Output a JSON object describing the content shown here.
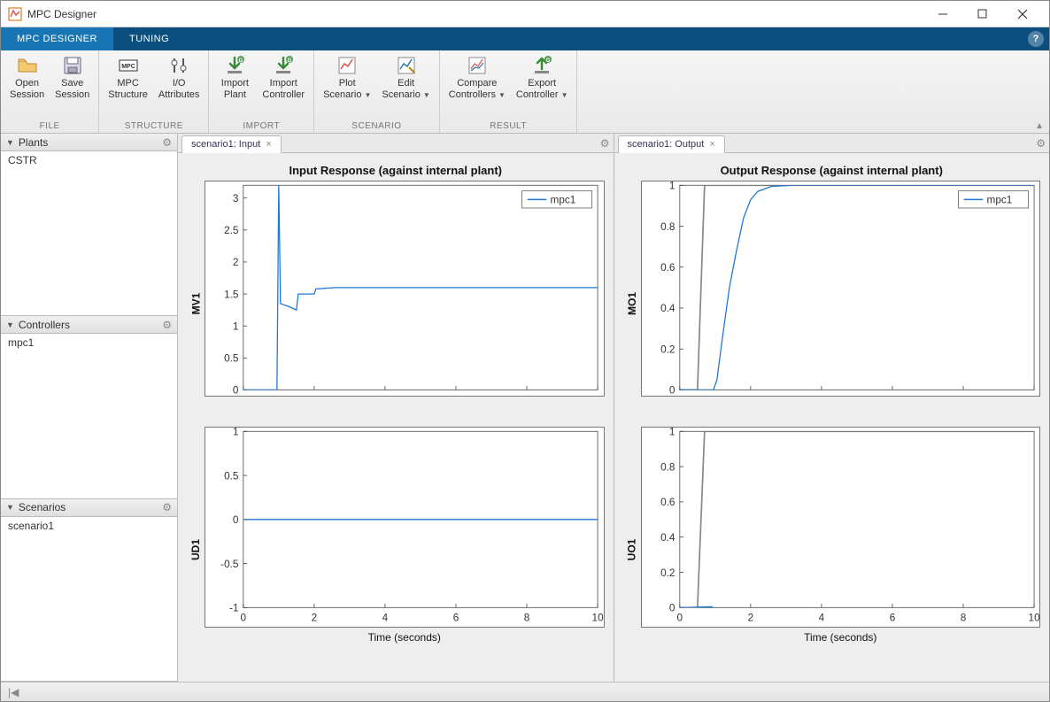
{
  "window": {
    "title": "MPC Designer"
  },
  "ribbon": {
    "tabs": [
      {
        "label": "MPC DESIGNER",
        "active": true
      },
      {
        "label": "TUNING",
        "active": false
      }
    ],
    "groups": [
      {
        "label": "FILE",
        "buttons": [
          {
            "label": "Open\nSession",
            "icon": "open"
          },
          {
            "label": "Save\nSession",
            "icon": "save"
          }
        ]
      },
      {
        "label": "STRUCTURE",
        "buttons": [
          {
            "label": "MPC\nStructure",
            "icon": "mpc"
          },
          {
            "label": "I/O\nAttributes",
            "icon": "io"
          }
        ]
      },
      {
        "label": "IMPORT",
        "buttons": [
          {
            "label": "Import\nPlant",
            "icon": "import-down"
          },
          {
            "label": "Import\nController",
            "icon": "import-down"
          }
        ]
      },
      {
        "label": "SCENARIO",
        "buttons": [
          {
            "label": "Plot\nScenario",
            "icon": "plot",
            "dropdown": true
          },
          {
            "label": "Edit\nScenario",
            "icon": "edit",
            "dropdown": true
          }
        ]
      },
      {
        "label": "RESULT",
        "buttons": [
          {
            "label": "Compare\nControllers",
            "icon": "compare",
            "dropdown": true
          },
          {
            "label": "Export\nController",
            "icon": "export",
            "dropdown": true
          }
        ]
      }
    ]
  },
  "sidebar": {
    "panels": [
      {
        "title": "Plants",
        "items": [
          "CSTR"
        ]
      },
      {
        "title": "Controllers",
        "items": [
          "mpc1"
        ]
      },
      {
        "title": "Scenarios",
        "items": [
          "scenario1"
        ]
      }
    ]
  },
  "panes": [
    {
      "tab": "scenario1: Input",
      "title": "Input Response (against internal plant)",
      "xlabel": "Time (seconds)",
      "legend": "mpc1",
      "series_color": "#1f77d4",
      "charts": [
        {
          "ylabel": "MV1",
          "xlim": [
            0,
            10
          ],
          "xticks": [
            0,
            2,
            4,
            6,
            8,
            10
          ],
          "ylim": [
            0,
            3.2
          ],
          "yticks": [
            0,
            0.5,
            1,
            1.5,
            2,
            2.5,
            3
          ],
          "show_legend": true,
          "show_xlabel": false,
          "lines": [],
          "series": [
            [
              0,
              0
            ],
            [
              0.95,
              0
            ],
            [
              1.0,
              3.2
            ],
            [
              1.05,
              1.35
            ],
            [
              1.3,
              1.3
            ],
            [
              1.5,
              1.25
            ],
            [
              1.55,
              1.5
            ],
            [
              2.0,
              1.5
            ],
            [
              2.05,
              1.58
            ],
            [
              2.6,
              1.6
            ],
            [
              10,
              1.6
            ]
          ]
        },
        {
          "ylabel": "UD1",
          "xlim": [
            0,
            10
          ],
          "xticks": [
            0,
            2,
            4,
            6,
            8,
            10
          ],
          "ylim": [
            -1,
            1
          ],
          "yticks": [
            -1,
            -0.5,
            0,
            0.5,
            1
          ],
          "show_legend": false,
          "show_xlabel": true,
          "lines": [],
          "series": [
            [
              0,
              0
            ],
            [
              10,
              0
            ]
          ]
        }
      ]
    },
    {
      "tab": "scenario1: Output",
      "title": "Output Response (against internal plant)",
      "xlabel": "Time (seconds)",
      "legend": "mpc1",
      "series_color": "#1f77d4",
      "charts": [
        {
          "ylabel": "MO1",
          "xlim": [
            0,
            10
          ],
          "xticks": [
            0,
            2,
            4,
            6,
            8,
            10
          ],
          "ylim": [
            0,
            1
          ],
          "yticks": [
            0,
            0.2,
            0.4,
            0.6,
            0.8,
            1
          ],
          "show_legend": true,
          "show_xlabel": false,
          "lines": [
            {
              "stroke": "#888888",
              "points": [
                [
                  0,
                  0
                ],
                [
                  0.5,
                  0
                ],
                [
                  0.7,
                  1
                ],
                [
                  10,
                  1
                ]
              ]
            }
          ],
          "series": [
            [
              0,
              0
            ],
            [
              0.95,
              0
            ],
            [
              1.05,
              0.05
            ],
            [
              1.2,
              0.25
            ],
            [
              1.4,
              0.5
            ],
            [
              1.6,
              0.68
            ],
            [
              1.8,
              0.84
            ],
            [
              2.0,
              0.93
            ],
            [
              2.2,
              0.97
            ],
            [
              2.6,
              0.995
            ],
            [
              3.2,
              1.0
            ],
            [
              10,
              1.0
            ]
          ]
        },
        {
          "ylabel": "UO1",
          "xlim": [
            0,
            10
          ],
          "xticks": [
            0,
            2,
            4,
            6,
            8,
            10
          ],
          "ylim": [
            0,
            1
          ],
          "yticks": [
            0,
            0.2,
            0.4,
            0.6,
            0.8,
            1
          ],
          "show_legend": false,
          "show_xlabel": true,
          "lines": [
            {
              "stroke": "#888888",
              "points": [
                [
                  0,
                  0
                ],
                [
                  0.5,
                  0
                ],
                [
                  0.7,
                  1
                ],
                [
                  10,
                  1
                ]
              ]
            }
          ],
          "series": [
            [
              0,
              0
            ],
            [
              0.9,
              0.005
            ],
            [
              1.0,
              -0.01
            ],
            [
              1.3,
              -0.04
            ],
            [
              1.6,
              -0.055
            ],
            [
              2.0,
              -0.06
            ],
            [
              2.5,
              -0.06
            ],
            [
              10,
              -0.06
            ]
          ]
        }
      ]
    }
  ]
}
